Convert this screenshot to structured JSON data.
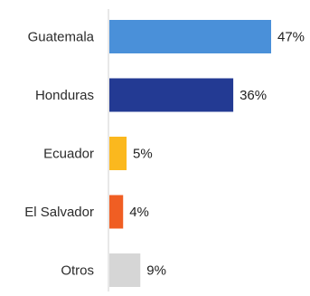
{
  "chart_data": {
    "type": "bar",
    "orientation": "horizontal",
    "categories": [
      "Guatemala",
      "Honduras",
      "Ecuador",
      "El Salvador",
      "Otros"
    ],
    "values": [
      47,
      36,
      5,
      4,
      9
    ],
    "value_labels": [
      "47%",
      "36%",
      "5%",
      "4%",
      "9%"
    ],
    "colors": [
      "#4a90d9",
      "#233a93",
      "#fbb81e",
      "#f05e23",
      "#d6d6d6"
    ],
    "xlim": [
      0,
      47
    ],
    "grid": false,
    "legend": "none"
  }
}
